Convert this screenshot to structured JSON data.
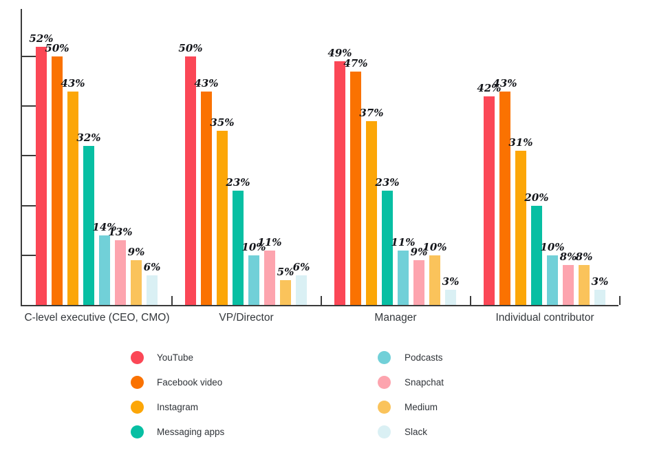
{
  "chart_data": {
    "type": "bar",
    "title": "",
    "xlabel": "",
    "ylabel": "",
    "categories": [
      "C-level executive (CEO, CMO)",
      "VP/Director",
      "Manager",
      "Individual contributor"
    ],
    "series": [
      {
        "name": "YouTube",
        "color": "#FB4756",
        "values": [
          52,
          50,
          49,
          42
        ]
      },
      {
        "name": "Facebook video",
        "color": "#FA7201",
        "values": [
          50,
          43,
          47,
          43
        ]
      },
      {
        "name": "Instagram",
        "color": "#FCA607",
        "values": [
          43,
          35,
          37,
          31
        ]
      },
      {
        "name": "Messaging apps",
        "color": "#07BFA3",
        "values": [
          32,
          23,
          23,
          20
        ]
      },
      {
        "name": "Podcasts",
        "color": "#71D0D8",
        "values": [
          14,
          10,
          11,
          10
        ]
      },
      {
        "name": "Snapchat",
        "color": "#FDA4AE",
        "values": [
          13,
          11,
          9,
          8
        ]
      },
      {
        "name": "Medium",
        "color": "#FAC35B",
        "values": [
          9,
          5,
          10,
          8
        ]
      },
      {
        "name": "Slack",
        "color": "#DAF0F4",
        "values": [
          6,
          6,
          3,
          3
        ]
      }
    ],
    "value_suffix": "%",
    "data_labels": true,
    "ylim": [
      0,
      59.5
    ],
    "y_ticks_percent": [
      10,
      20,
      30,
      40,
      50
    ],
    "y_tick_labels_visible": false,
    "grid": false,
    "legend_position": "bottom",
    "legend_columns": 2,
    "axis_color": "#3B3B3B",
    "value_label_color": "#14161B",
    "category_label_color": "#33373B"
  }
}
